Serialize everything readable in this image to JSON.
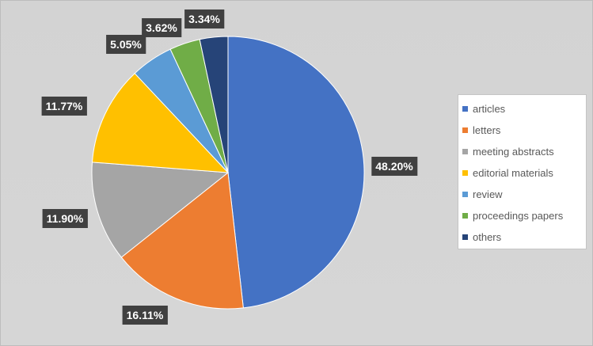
{
  "chart_data": {
    "type": "pie",
    "title": "",
    "start_angle_deg": 0,
    "direction": "clockwise",
    "legend_position": "right",
    "slices": [
      {
        "label": "articles",
        "value": 48.2,
        "display": "48.20%",
        "color": "#4472C4"
      },
      {
        "label": "letters",
        "value": 16.11,
        "display": "16.11%",
        "color": "#ED7D31"
      },
      {
        "label": "meeting abstracts",
        "value": 11.9,
        "display": "11.90%",
        "color": "#A5A5A5"
      },
      {
        "label": "editorial materials",
        "value": 11.77,
        "display": "11.77%",
        "color": "#FFC000"
      },
      {
        "label": "review",
        "value": 5.05,
        "display": "5.05%",
        "color": "#5B9BD5"
      },
      {
        "label": "proceedings papers",
        "value": 3.62,
        "display": "3.62%",
        "color": "#70AD47"
      },
      {
        "label": "others",
        "value": 3.34,
        "display": "3.34%",
        "color": "#264478"
      }
    ]
  }
}
